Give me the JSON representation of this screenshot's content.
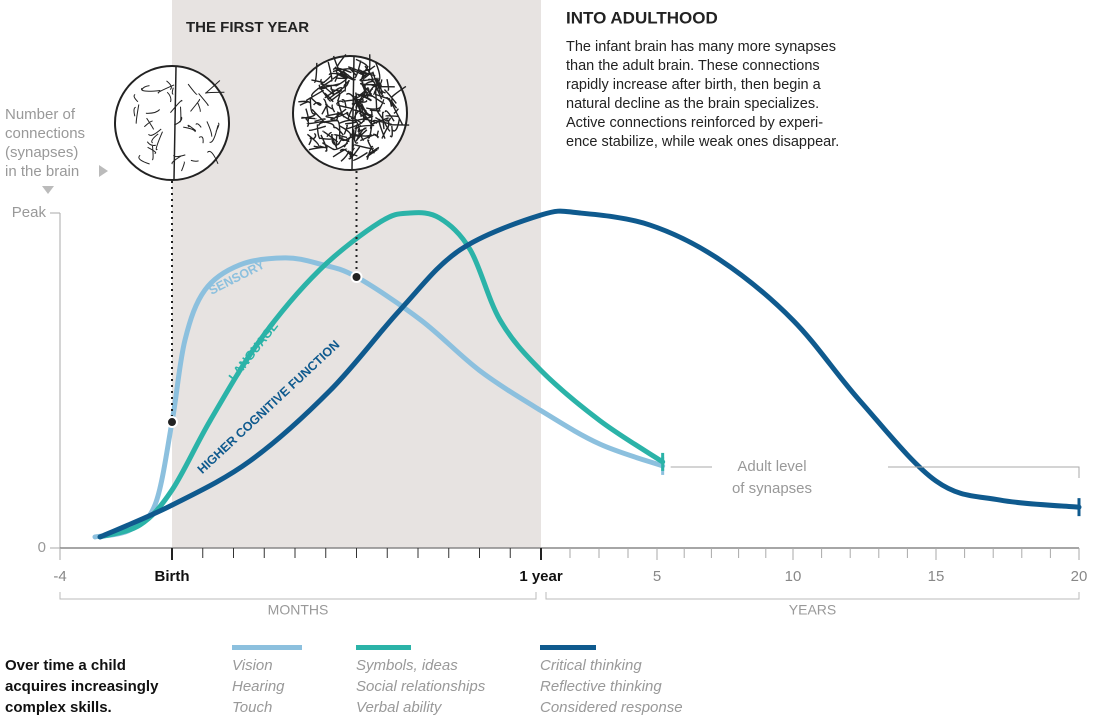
{
  "chart_data": {
    "type": "line",
    "title": "INTO ADULTHOOD",
    "subtitle_lines": [
      "The infant brain has many more synapses",
      "than the adult brain. These connections",
      "rapidly increase after birth, then begin a",
      "natural decline as the brain specializes.",
      "Active connections reinforced by experi-",
      "ence stabilize, while weak ones disappear."
    ],
    "highlight": {
      "label": "THE FIRST YEAR",
      "from": 0,
      "to": 12
    },
    "y_label_lines": [
      "Number of",
      "connections",
      "(synapses)",
      "in the brain"
    ],
    "ylim": [
      0,
      100
    ],
    "yticks": [
      0,
      {
        "value": 100,
        "label": "Peak"
      }
    ],
    "xticks": [
      -4,
      {
        "value": 0,
        "label": "Birth"
      },
      {
        "value": 12,
        "label": "1 year"
      },
      {
        "value": 60,
        "label": "5"
      },
      {
        "value": 120,
        "label": "10"
      },
      {
        "value": 180,
        "label": "15"
      },
      {
        "value": 240,
        "label": "20"
      }
    ],
    "x_minor_ticks": [
      1,
      2,
      3,
      4,
      5,
      6,
      7,
      8,
      9,
      10,
      11,
      24,
      36,
      48,
      72,
      84,
      96,
      108,
      132,
      144,
      156,
      168,
      192,
      204,
      216,
      228
    ],
    "x_segments": [
      {
        "label": "MONTHS",
        "from": -4,
        "to": 12
      },
      {
        "label": "YEARS",
        "from": 12,
        "to": 240
      }
    ],
    "series": [
      {
        "name": "SENSORY",
        "color": "#8cc0de",
        "x": [
          -2.75,
          -1.5,
          -0.6,
          0,
          0.42,
          1.07,
          2.2,
          3.67,
          4.8,
          6,
          8.1,
          10,
          12,
          36.4,
          62.5
        ],
        "values": [
          3.3,
          5.4,
          13,
          37.6,
          62,
          77,
          84.5,
          86.6,
          84.8,
          80.9,
          68,
          53,
          41,
          31,
          24.5
        ],
        "skills": [
          "Vision",
          "Hearing",
          "Touch"
        ]
      },
      {
        "name": "LANGUAGE",
        "color": "#2bb3a8",
        "x": [
          -2.57,
          -1.14,
          0,
          1.24,
          2.86,
          4.8,
          6.77,
          7.74,
          8.7,
          9.7,
          10.67,
          12,
          36.4,
          62.5
        ],
        "values": [
          3.3,
          6.9,
          17.3,
          38,
          62,
          83,
          97.3,
          100,
          98.5,
          89,
          68,
          53,
          38,
          25.7
        ],
        "skills": [
          "Symbols, ideas",
          "Social relationships",
          "Verbal ability"
        ]
      },
      {
        "name": "HIGHER COGNITIVE FUNCTION",
        "color": "#0f5a8e",
        "x": [
          -2.57,
          0,
          2.54,
          5.14,
          7.41,
          9.37,
          12,
          28.1,
          57.1,
          87.8,
          120,
          148,
          180,
          206.9,
          240
        ],
        "values": [
          3.3,
          12.8,
          26,
          47,
          71,
          89,
          99.4,
          100,
          96.4,
          86,
          68,
          44,
          20,
          14.3,
          12.2
        ],
        "skills": [
          "Critical thinking",
          "Reflective thinking",
          "Considered response"
        ]
      }
    ],
    "annotation_lines": [
      "Adult level",
      "of synapses"
    ],
    "footnote_lines": [
      "Over time a child",
      "acquires increasingly",
      "complex skills."
    ]
  }
}
